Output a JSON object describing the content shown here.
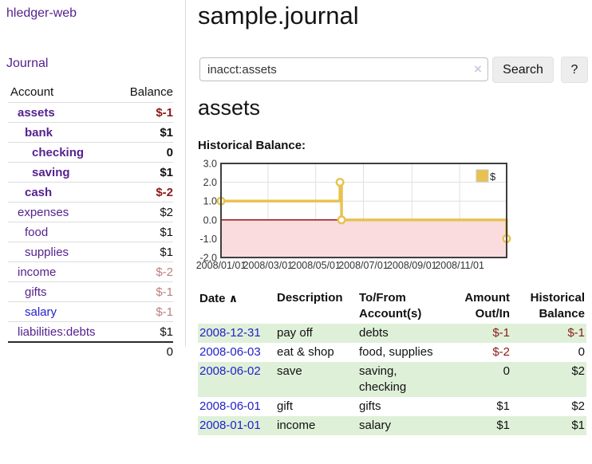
{
  "app": {
    "brand_label": "hledger-web"
  },
  "sidebar": {
    "nav_journal": "Journal",
    "accounts": {
      "header_account": "Account",
      "header_balance": "Balance",
      "rows": [
        {
          "name": "assets",
          "balance": "$-1"
        },
        {
          "name": "bank",
          "balance": "$1"
        },
        {
          "name": "checking",
          "balance": "0"
        },
        {
          "name": "saving",
          "balance": "$1"
        },
        {
          "name": "cash",
          "balance": "$-2"
        },
        {
          "name": "expenses",
          "balance": "$2"
        },
        {
          "name": "food",
          "balance": "$1"
        },
        {
          "name": "supplies",
          "balance": "$1"
        },
        {
          "name": "income",
          "balance": "$-2"
        },
        {
          "name": "gifts",
          "balance": "$-1"
        },
        {
          "name": "salary",
          "balance": "$-1"
        },
        {
          "name": "liabilities:debts",
          "balance": "$1"
        }
      ],
      "total": "0"
    }
  },
  "main": {
    "title": "sample.journal",
    "search": {
      "value": "inacct:assets",
      "clear_icon": "×",
      "search_button": "Search",
      "help_button": "?"
    },
    "heading": "assets",
    "chart_title": "Historical Balance:"
  },
  "chart_data": {
    "type": "line",
    "title": "Historical Balance",
    "step": true,
    "series": [
      {
        "name": "$",
        "points": [
          {
            "date": "2008-01-01",
            "value": 1.0
          },
          {
            "date": "2008-06-01",
            "value": 2.0
          },
          {
            "date": "2008-06-03",
            "value": 0.0
          },
          {
            "date": "2008-12-31",
            "value": -1.0
          }
        ]
      }
    ],
    "ylim": [
      -2.0,
      3.0
    ],
    "yticks": [
      "3.0",
      "2.0",
      "1.0",
      "0.0",
      "-1.0",
      "-2.0"
    ],
    "xticks": [
      "2008/01/01",
      "2008/03/01",
      "2008/05/01",
      "2008/07/01",
      "2008/09/01",
      "2008/11/01"
    ],
    "legend": "$",
    "legend_position": "top-right",
    "grid": true,
    "negative_region_shaded": true,
    "line_color": "#e8c14f",
    "negative_fill_color": "#fbdcde",
    "zero_line_color": "#8b0000"
  },
  "register": {
    "headers": {
      "date": "Date",
      "sort_icon": "∧",
      "description": "Description",
      "accounts": "To/From Account(s)",
      "amount": "Amount Out/In",
      "balance": "Historical Balance"
    },
    "rows": [
      {
        "date": "2008-12-31",
        "description": "pay off",
        "accounts": "debts",
        "amount": "$-1",
        "balance": "$-1"
      },
      {
        "date": "2008-06-03",
        "description": "eat & shop",
        "accounts": "food, supplies",
        "amount": "$-2",
        "balance": "0"
      },
      {
        "date": "2008-06-02",
        "description": "save",
        "accounts": "saving, checking",
        "amount": "0",
        "balance": "$2"
      },
      {
        "date": "2008-06-01",
        "description": "gift",
        "accounts": "gifts",
        "amount": "$1",
        "balance": "$2"
      },
      {
        "date": "2008-01-01",
        "description": "income",
        "accounts": "salary",
        "amount": "$1",
        "balance": "$1"
      }
    ]
  },
  "colors": {
    "link_purple": "#55228d",
    "link_blue": "#2222cc",
    "negative_strong": "#8b1a1a",
    "negative_muted": "#b98080",
    "row_green": "#dff0d8",
    "chart_gold": "#e8c14f",
    "chart_negative_pink": "#fbdcde",
    "zero_line_red": "#8b0000"
  }
}
